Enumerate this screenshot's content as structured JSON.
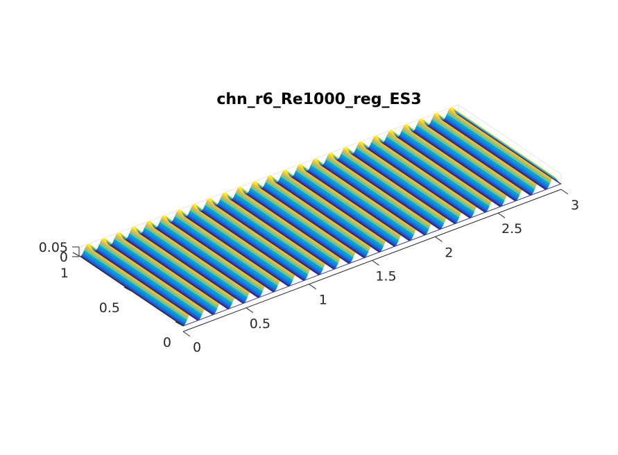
{
  "chart_data": {
    "type": "surface",
    "title": "chn_r6_Re1000_reg_ES3",
    "xlabel": "",
    "ylabel": "",
    "zlabel": "",
    "xlim": [
      0,
      3
    ],
    "ylim": [
      0,
      1
    ],
    "zlim": [
      0,
      0.05
    ],
    "x_ticks": [
      {
        "value": 0,
        "label": "0"
      },
      {
        "value": 0.5,
        "label": "0.5"
      },
      {
        "value": 1,
        "label": "1"
      },
      {
        "value": 1.5,
        "label": "1.5"
      },
      {
        "value": 2,
        "label": "2"
      },
      {
        "value": 2.5,
        "label": "2.5"
      },
      {
        "value": 3,
        "label": "3"
      }
    ],
    "y_ticks": [
      {
        "value": 0,
        "label": "0"
      },
      {
        "value": 0.5,
        "label": "0.5"
      },
      {
        "value": 1,
        "label": "1"
      }
    ],
    "z_ticks": [
      {
        "value": 0,
        "label": "0"
      },
      {
        "value": 0.05,
        "label": "0.05"
      }
    ],
    "surface": {
      "description": "periodic ridges along x, constant along y",
      "ridge_count": 25,
      "amplitude": 0.05,
      "colormap": [
        "#352a87",
        "#0f5cdd",
        "#1481d6",
        "#06a4ca",
        "#2eb7a4",
        "#87bf77",
        "#d1bb59",
        "#fec832",
        "#f9fb0e"
      ]
    },
    "grid": true,
    "view": "3d"
  }
}
